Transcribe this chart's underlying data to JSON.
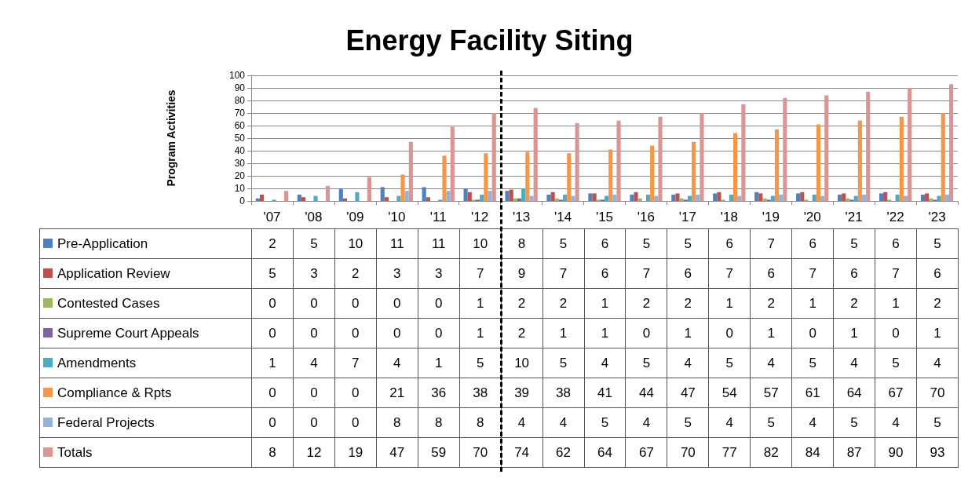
{
  "chart_data": {
    "type": "bar",
    "title": "Energy Facility Siting",
    "ylabel": "Program Activities",
    "categories": [
      "'07",
      "'08",
      "'09",
      "'10",
      "'11",
      "'12",
      "'13",
      "'14",
      "'15",
      "'16",
      "'17",
      "'18",
      "'19",
      "'20",
      "'21",
      "'22",
      "'23"
    ],
    "series": [
      {
        "name": "Pre-Application",
        "color": "#4f81bd",
        "values": [
          2,
          5,
          10,
          11,
          11,
          10,
          8,
          5,
          6,
          5,
          5,
          6,
          7,
          6,
          5,
          6,
          5
        ]
      },
      {
        "name": "Application Review",
        "color": "#c0504d",
        "values": [
          5,
          3,
          2,
          3,
          3,
          7,
          9,
          7,
          6,
          7,
          6,
          7,
          6,
          7,
          6,
          7,
          6
        ]
      },
      {
        "name": "Contested Cases",
        "color": "#9bbb59",
        "values": [
          0,
          0,
          0,
          0,
          0,
          1,
          2,
          2,
          1,
          2,
          2,
          1,
          2,
          1,
          2,
          1,
          2
        ]
      },
      {
        "name": "Supreme Court Appeals",
        "color": "#8064a2",
        "values": [
          0,
          0,
          0,
          0,
          0,
          1,
          2,
          1,
          1,
          0,
          1,
          0,
          1,
          0,
          1,
          0,
          1
        ]
      },
      {
        "name": "Amendments",
        "color": "#4bacc6",
        "values": [
          1,
          4,
          7,
          4,
          1,
          5,
          10,
          5,
          4,
          5,
          4,
          5,
          4,
          5,
          4,
          5,
          4
        ]
      },
      {
        "name": "Compliance & Rpts",
        "color": "#f79646",
        "values": [
          0,
          0,
          0,
          21,
          36,
          38,
          39,
          38,
          41,
          44,
          47,
          54,
          57,
          61,
          64,
          67,
          70
        ]
      },
      {
        "name": "Federal Projects",
        "color": "#95b3d7",
        "values": [
          0,
          0,
          0,
          8,
          8,
          8,
          4,
          4,
          5,
          4,
          5,
          4,
          5,
          4,
          5,
          4,
          5
        ]
      },
      {
        "name": "Totals",
        "color": "#d99694",
        "values": [
          8,
          12,
          19,
          47,
          59,
          70,
          74,
          62,
          64,
          67,
          70,
          77,
          82,
          84,
          87,
          90,
          93
        ]
      }
    ],
    "ylim": [
      0,
      100
    ],
    "yticks": [
      0,
      10,
      20,
      30,
      40,
      50,
      60,
      70,
      80,
      90,
      100
    ],
    "grid": "y",
    "data_labels": true,
    "legend": "bottom",
    "ref_lines": [
      {
        "axis": "x",
        "value": "'13",
        "line_style": "dashed",
        "color": "#000000"
      }
    ]
  }
}
